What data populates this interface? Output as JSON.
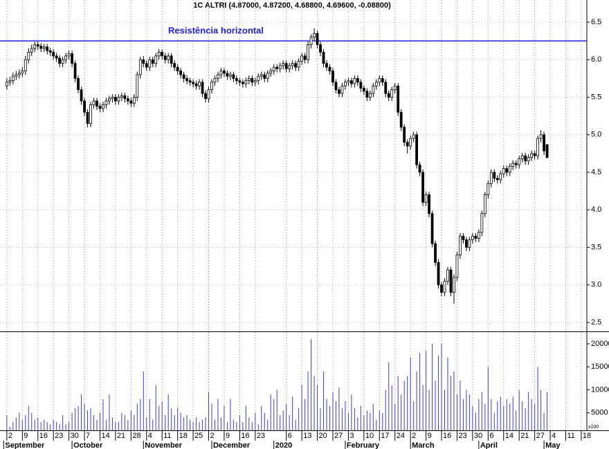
{
  "chart_data": {
    "type": "candlestick",
    "title": "1C ALTRI (4.87000, 4.87200, 4.68800, 4.69600, -0.08800)",
    "xlim": [
      -2.2,
      186.8
    ],
    "xticks": [
      {
        "value": 0,
        "label": "2"
      },
      {
        "value": 5,
        "label": "9"
      },
      {
        "value": 10,
        "label": "16"
      },
      {
        "value": 15,
        "label": "23"
      },
      {
        "value": 20,
        "label": "30"
      },
      {
        "value": 25,
        "label": "7"
      },
      {
        "value": 30,
        "label": "14"
      },
      {
        "value": 35,
        "label": "21"
      },
      {
        "value": 40,
        "label": "28"
      },
      {
        "value": 45,
        "label": "4"
      },
      {
        "value": 50,
        "label": "11"
      },
      {
        "value": 55,
        "label": "18"
      },
      {
        "value": 60,
        "label": "25"
      },
      {
        "value": 65,
        "label": "2"
      },
      {
        "value": 70,
        "label": "9"
      },
      {
        "value": 75,
        "label": "16"
      },
      {
        "value": 80,
        "label": "23"
      },
      {
        "value": 90,
        "label": "6"
      },
      {
        "value": 95,
        "label": "13"
      },
      {
        "value": 100,
        "label": "20"
      },
      {
        "value": 105,
        "label": "27"
      },
      {
        "value": 110,
        "label": "3"
      },
      {
        "value": 115,
        "label": "10"
      },
      {
        "value": 120,
        "label": "17"
      },
      {
        "value": 125,
        "label": "24"
      },
      {
        "value": 130,
        "label": "2"
      },
      {
        "value": 135,
        "label": "9"
      },
      {
        "value": 140,
        "label": "16"
      },
      {
        "value": 145,
        "label": "23"
      },
      {
        "value": 150,
        "label": "30"
      },
      {
        "value": 155,
        "label": "6"
      },
      {
        "value": 160,
        "label": "14"
      },
      {
        "value": 165,
        "label": "21"
      },
      {
        "value": 170,
        "label": "27"
      },
      {
        "value": 175,
        "label": "4"
      },
      {
        "value": 180,
        "label": "11"
      },
      {
        "value": 185,
        "label": "18"
      }
    ],
    "months": [
      {
        "value": -1,
        "label": "September"
      },
      {
        "value": 21,
        "label": "October"
      },
      {
        "value": 44,
        "label": "November"
      },
      {
        "value": 66,
        "label": "December"
      },
      {
        "value": 86,
        "label": "2020"
      },
      {
        "value": 109,
        "label": "February"
      },
      {
        "value": 130,
        "label": "March"
      },
      {
        "value": 152,
        "label": "April"
      },
      {
        "value": 173,
        "label": "May"
      }
    ],
    "ylim": [
      2.39,
      6.795
    ],
    "yticks": [
      2.5,
      {
        "value": 3,
        "label": "3.0"
      },
      3.5,
      {
        "value": 4,
        "label": "4.0"
      },
      4.5,
      {
        "value": 5,
        "label": "5.0"
      },
      5.5,
      {
        "value": 6,
        "label": "6.0"
      },
      6.5
    ],
    "grid": true,
    "resistance": {
      "value": 6.25,
      "label": "Resistência horizontal",
      "color": "#2020e0"
    },
    "up_color": "#ffffff",
    "down_color": "#000000",
    "open": [
      5.65,
      5.7,
      5.72,
      5.78,
      5.8,
      5.82,
      5.85,
      6.0,
      6.1,
      6.15,
      6.2,
      6.18,
      6.15,
      6.17,
      6.12,
      6.1,
      6.05,
      6.02,
      5.95,
      6.0,
      6.05,
      6.08,
      5.95,
      5.75,
      5.6,
      5.45,
      5.3,
      5.15,
      5.4,
      5.45,
      5.38,
      5.35,
      5.4,
      5.45,
      5.48,
      5.5,
      5.45,
      5.5,
      5.52,
      5.48,
      5.45,
      5.42,
      5.5,
      5.8,
      6.0,
      5.95,
      5.9,
      6.0,
      5.95,
      6.05,
      6.1,
      6.05,
      6.0,
      6.05,
      5.95,
      5.9,
      5.85,
      5.8,
      5.75,
      5.72,
      5.7,
      5.68,
      5.65,
      5.7,
      5.55,
      5.48,
      5.6,
      5.7,
      5.75,
      5.8,
      5.85,
      5.82,
      5.78,
      5.8,
      5.75,
      5.72,
      5.7,
      5.68,
      5.72,
      5.75,
      5.7,
      5.72,
      5.78,
      5.8,
      5.75,
      5.82,
      5.85,
      5.9,
      5.88,
      5.92,
      5.95,
      5.88,
      5.92,
      5.95,
      5.9,
      5.98,
      6.05,
      6.0,
      6.2,
      6.3,
      6.35,
      6.2,
      6.1,
      5.95,
      5.9,
      5.85,
      5.7,
      5.6,
      5.55,
      5.65,
      5.7,
      5.72,
      5.68,
      5.75,
      5.7,
      5.62,
      5.58,
      5.5,
      5.55,
      5.65,
      5.7,
      5.75,
      5.7,
      5.55,
      5.5,
      5.6,
      5.65,
      5.3,
      5.1,
      4.9,
      4.85,
      4.95,
      5.0,
      4.6,
      4.5,
      4.1,
      4.2,
      3.95,
      3.55,
      3.3,
      3.0,
      2.9,
      3.05,
      3.2,
      2.9,
      3.1,
      3.4,
      3.65,
      3.6,
      3.5,
      3.6,
      3.65,
      3.62,
      3.7,
      3.95,
      4.2,
      4.35,
      4.5,
      4.42,
      4.4,
      4.48,
      4.55,
      4.5,
      4.58,
      4.62,
      4.6,
      4.68,
      4.72,
      4.65,
      4.7,
      4.75,
      4.72,
      4.95,
      5.0,
      4.87
    ],
    "high": [
      5.75,
      5.77,
      5.83,
      5.85,
      5.87,
      5.9,
      6.05,
      6.15,
      6.2,
      6.24,
      6.24,
      6.22,
      6.21,
      6.21,
      6.16,
      6.14,
      6.09,
      6.06,
      6.04,
      6.09,
      6.12,
      6.12,
      5.99,
      5.79,
      5.64,
      5.49,
      5.34,
      5.44,
      5.49,
      5.49,
      5.42,
      5.44,
      5.49,
      5.52,
      5.54,
      5.54,
      5.54,
      5.56,
      5.56,
      5.52,
      5.49,
      5.54,
      5.84,
      6.04,
      6.05,
      5.99,
      6.04,
      6.04,
      6.09,
      6.14,
      6.14,
      6.09,
      6.09,
      6.09,
      5.99,
      5.94,
      5.89,
      5.84,
      5.79,
      5.76,
      5.74,
      5.72,
      5.74,
      5.74,
      5.59,
      5.64,
      5.74,
      5.79,
      5.84,
      5.89,
      5.89,
      5.86,
      5.84,
      5.84,
      5.79,
      5.76,
      5.74,
      5.76,
      5.79,
      5.79,
      5.76,
      5.82,
      5.84,
      5.84,
      5.86,
      5.89,
      5.94,
      5.94,
      5.96,
      5.99,
      5.99,
      5.96,
      5.99,
      5.99,
      6.02,
      6.09,
      6.09,
      6.24,
      6.34,
      6.42,
      6.39,
      6.24,
      6.14,
      5.99,
      5.94,
      5.89,
      5.74,
      5.64,
      5.69,
      5.74,
      5.76,
      5.76,
      5.79,
      5.79,
      5.74,
      5.66,
      5.62,
      5.59,
      5.69,
      5.74,
      5.79,
      5.79,
      5.74,
      5.59,
      5.64,
      5.69,
      5.69,
      5.34,
      5.14,
      4.94,
      4.99,
      5.04,
      5.04,
      4.64,
      4.54,
      4.24,
      4.24,
      3.99,
      3.59,
      3.34,
      3.04,
      3.09,
      3.24,
      3.24,
      3.14,
      3.44,
      3.69,
      3.69,
      3.64,
      3.64,
      3.69,
      3.69,
      3.74,
      3.99,
      4.24,
      4.39,
      4.54,
      4.54,
      4.46,
      4.52,
      4.59,
      4.59,
      4.62,
      4.66,
      4.66,
      4.72,
      4.76,
      4.76,
      4.74,
      4.79,
      4.79,
      4.99,
      5.06,
      5.04,
      4.872
    ],
    "low": [
      5.6,
      5.65,
      5.67,
      5.73,
      5.75,
      5.77,
      5.8,
      5.95,
      6.05,
      6.1,
      6.13,
      6.1,
      6.1,
      6.07,
      6.05,
      6.0,
      5.97,
      5.9,
      5.9,
      5.95,
      6.0,
      5.9,
      5.7,
      5.55,
      5.4,
      5.25,
      5.1,
      5.1,
      5.35,
      5.33,
      5.3,
      5.3,
      5.35,
      5.4,
      5.43,
      5.4,
      5.4,
      5.45,
      5.43,
      5.4,
      5.37,
      5.37,
      5.45,
      5.75,
      5.9,
      5.85,
      5.85,
      5.9,
      5.9,
      6.0,
      6.0,
      5.95,
      5.95,
      5.9,
      5.85,
      5.8,
      5.75,
      5.7,
      5.67,
      5.65,
      5.63,
      5.6,
      5.6,
      5.5,
      5.43,
      5.43,
      5.55,
      5.65,
      5.7,
      5.75,
      5.77,
      5.73,
      5.73,
      5.7,
      5.67,
      5.65,
      5.63,
      5.63,
      5.67,
      5.65,
      5.65,
      5.67,
      5.73,
      5.7,
      5.7,
      5.77,
      5.8,
      5.83,
      5.83,
      5.87,
      5.83,
      5.83,
      5.87,
      5.85,
      5.85,
      5.93,
      5.95,
      5.95,
      6.15,
      6.25,
      6.15,
      6.05,
      5.9,
      5.85,
      5.8,
      5.65,
      5.55,
      5.5,
      5.5,
      5.6,
      5.65,
      5.63,
      5.63,
      5.65,
      5.57,
      5.53,
      5.45,
      5.45,
      5.5,
      5.6,
      5.65,
      5.65,
      5.5,
      5.45,
      5.45,
      5.55,
      5.25,
      5.05,
      4.85,
      4.75,
      4.8,
      4.9,
      4.55,
      4.45,
      4.05,
      4.05,
      3.9,
      3.5,
      3.25,
      2.95,
      2.85,
      2.85,
      3.0,
      2.85,
      2.75,
      3.05,
      3.35,
      3.55,
      3.45,
      3.45,
      3.55,
      3.57,
      3.57,
      3.65,
      3.9,
      4.15,
      4.3,
      4.37,
      4.35,
      4.35,
      4.43,
      4.45,
      4.45,
      4.53,
      4.55,
      4.55,
      4.63,
      4.6,
      4.6,
      4.65,
      4.67,
      4.67,
      4.9,
      4.73,
      4.688
    ],
    "close": [
      5.7,
      5.72,
      5.78,
      5.8,
      5.82,
      5.85,
      6.0,
      6.1,
      6.15,
      6.2,
      6.18,
      6.15,
      6.17,
      6.12,
      6.1,
      6.05,
      6.02,
      5.95,
      6.0,
      6.05,
      6.08,
      5.95,
      5.75,
      5.6,
      5.45,
      5.3,
      5.15,
      5.4,
      5.45,
      5.38,
      5.35,
      5.4,
      5.45,
      5.48,
      5.5,
      5.45,
      5.5,
      5.52,
      5.48,
      5.45,
      5.42,
      5.5,
      5.8,
      6.0,
      5.95,
      5.9,
      6.0,
      5.95,
      6.05,
      6.1,
      6.05,
      6.0,
      6.05,
      5.95,
      5.9,
      5.85,
      5.8,
      5.75,
      5.72,
      5.7,
      5.68,
      5.65,
      5.7,
      5.55,
      5.48,
      5.6,
      5.7,
      5.75,
      5.8,
      5.85,
      5.82,
      5.78,
      5.8,
      5.75,
      5.72,
      5.7,
      5.68,
      5.72,
      5.75,
      5.7,
      5.72,
      5.78,
      5.8,
      5.75,
      5.82,
      5.85,
      5.9,
      5.88,
      5.92,
      5.95,
      5.88,
      5.92,
      5.95,
      5.9,
      5.98,
      6.05,
      6.0,
      6.2,
      6.3,
      6.35,
      6.2,
      6.1,
      5.95,
      5.9,
      5.85,
      5.7,
      5.6,
      5.55,
      5.65,
      5.7,
      5.72,
      5.68,
      5.75,
      5.7,
      5.62,
      5.58,
      5.5,
      5.55,
      5.65,
      5.7,
      5.75,
      5.7,
      5.55,
      5.5,
      5.6,
      5.65,
      5.3,
      5.1,
      4.9,
      4.85,
      4.95,
      5.0,
      4.6,
      4.5,
      4.1,
      4.2,
      3.95,
      3.55,
      3.3,
      3.0,
      2.9,
      3.05,
      3.2,
      2.9,
      3.1,
      3.4,
      3.65,
      3.6,
      3.5,
      3.6,
      3.65,
      3.62,
      3.7,
      3.95,
      4.2,
      4.35,
      4.5,
      4.42,
      4.4,
      4.48,
      4.55,
      4.5,
      4.58,
      4.62,
      4.6,
      4.68,
      4.72,
      4.65,
      4.7,
      4.75,
      4.72,
      4.95,
      5.0,
      4.784,
      4.696
    ],
    "volume": {
      "color": "#3a3ad8",
      "ylim": [
        1200,
        22550
      ],
      "yticks": [
        5000,
        10000,
        15000,
        20000
      ],
      "unit": "x100",
      "values": [
        4500,
        2000,
        3000,
        4000,
        5000,
        3500,
        4500,
        6500,
        5000,
        3500,
        4000,
        3000,
        3500,
        3000,
        2500,
        3500,
        3000,
        2500,
        4500,
        2500,
        3000,
        5000,
        6000,
        6500,
        9000,
        7000,
        5500,
        6000,
        4500,
        3500,
        5000,
        8000,
        3500,
        9000,
        4000,
        3000,
        3000,
        5000,
        4500,
        3500,
        5500,
        4500,
        7000,
        8000,
        14000,
        4000,
        8000,
        3500,
        11000,
        6500,
        7500,
        4500,
        9000,
        6000,
        4500,
        6000,
        5000,
        4000,
        4500,
        3500,
        3000,
        4000,
        3000,
        3500,
        4000,
        9500,
        7000,
        3500,
        8000,
        4000,
        6500,
        3000,
        8000,
        3500,
        3000,
        4500,
        3000,
        6500,
        4000,
        3000,
        5000,
        2500,
        6500,
        5000,
        3500,
        9000,
        8000,
        10000,
        4500,
        5500,
        7000,
        4500,
        8500,
        3500,
        6000,
        11000,
        8000,
        14000,
        21000,
        13000,
        11000,
        6000,
        14000,
        8000,
        6500,
        9500,
        7500,
        10500,
        6000,
        7500,
        5000,
        9000,
        6000,
        4000,
        6500,
        4500,
        5500,
        5000,
        7000,
        3500,
        5500,
        5000,
        10000,
        16000,
        11000,
        7000,
        13000,
        9000,
        12000,
        13000,
        17000,
        7500,
        14000,
        18000,
        11000,
        18500,
        10000,
        20000,
        12000,
        17500,
        20000,
        10000,
        17000,
        13000,
        14000,
        9000,
        12000,
        8000,
        10000,
        9000,
        6500,
        5000,
        8000,
        9500,
        7000,
        15000,
        8000,
        5000,
        7500,
        8500,
        6500,
        8000,
        7000,
        8500,
        5500,
        10000,
        7500,
        6000,
        9500,
        8000,
        7000,
        15000,
        10000,
        5000,
        9500
      ]
    }
  }
}
